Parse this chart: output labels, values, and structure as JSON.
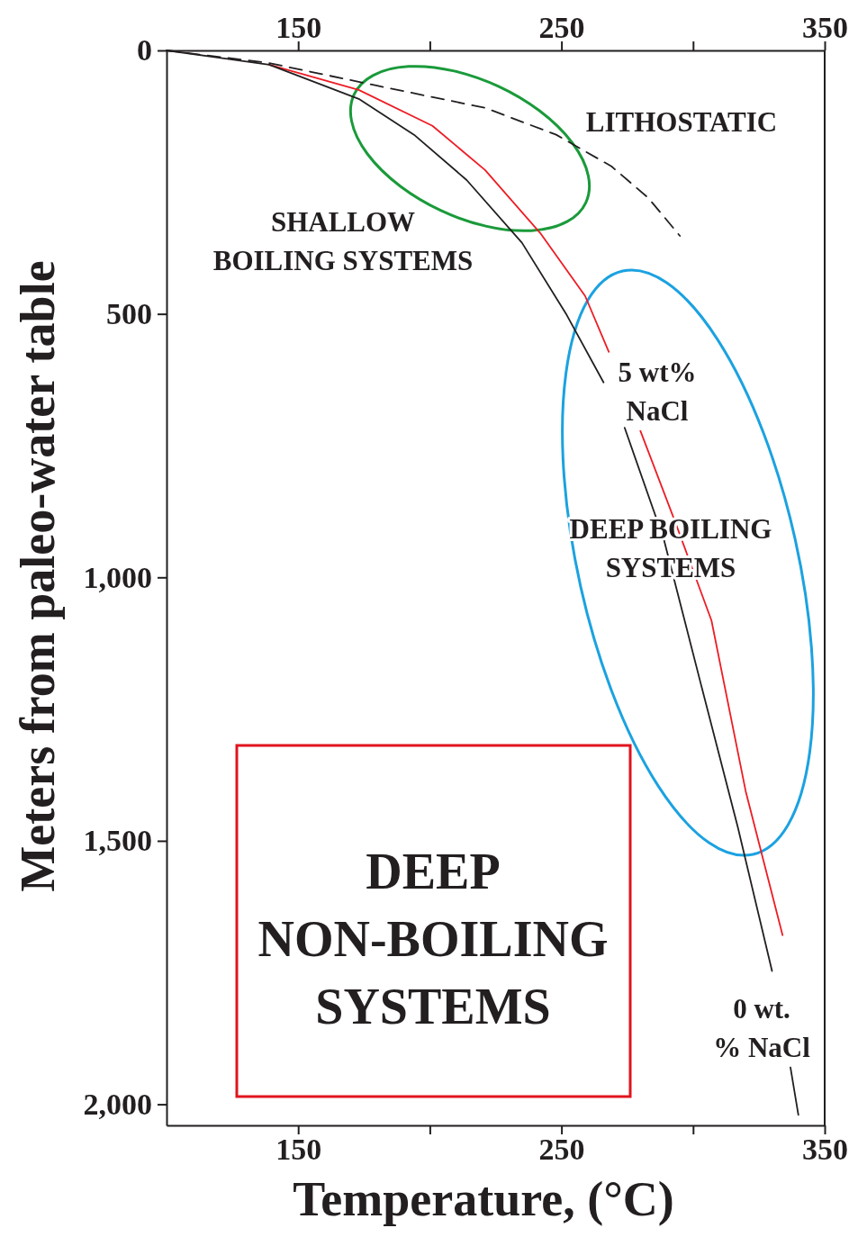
{
  "chart_data": {
    "type": "line",
    "xlabel": "Temperature, (°C)",
    "ylabel": "Meters from paleo-water table",
    "xlim": [
      100,
      350
    ],
    "xticks": [
      150,
      {
        "value": 200,
        "label": null
      },
      250,
      {
        "value": 300,
        "label": null
      },
      350
    ],
    "x2lim": [
      100,
      350
    ],
    "x2ticks": [
      150,
      {
        "value": 200,
        "label": null
      },
      250,
      {
        "value": 300,
        "label": null
      },
      350
    ],
    "ylim": [
      2040,
      0
    ],
    "yticks": [
      0,
      500,
      {
        "value": 1000,
        "label": "1,000"
      },
      {
        "value": 1500,
        "label": "1,500"
      },
      {
        "value": 2000,
        "label": "2,000"
      }
    ],
    "series": [
      {
        "name": "LITHOSTATIC",
        "color": "#231f20",
        "line_style": "dashed",
        "x": [
          100,
          139,
          180,
          221,
          248,
          269,
          283,
          295
        ],
        "values": [
          0,
          24,
          67,
          109,
          160,
          220,
          280,
          352
        ]
      },
      {
        "name": "5 wt% NaCl",
        "color": "#ed1c24",
        "x": [
          139,
          173,
          201,
          221,
          242,
          259,
          268,
          274,
          280,
          293,
          307,
          320,
          334
        ],
        "values": [
          27,
          75,
          143,
          227,
          347,
          466,
          572,
          null,
          722,
          892,
          1082,
          1406,
          1679
        ]
      },
      {
        "name": "0 wt. % NaCl",
        "color": "#231f20",
        "x": [
          100,
          139,
          173,
          194,
          214,
          235,
          252,
          266,
          270,
          274,
          289,
          303,
          317,
          330,
          334,
          337,
          340
        ],
        "values": [
          0,
          27,
          92,
          160,
          246,
          365,
          502,
          630,
          null,
          716,
          930,
          1203,
          1474,
          1747,
          null,
          1930,
          2020
        ]
      }
    ],
    "annotations": [
      "SHALLOW BOILING SYSTEMS",
      "DEEP BOILING SYSTEMS",
      "DEEP NON-BOILING SYSTEMS"
    ]
  }
}
